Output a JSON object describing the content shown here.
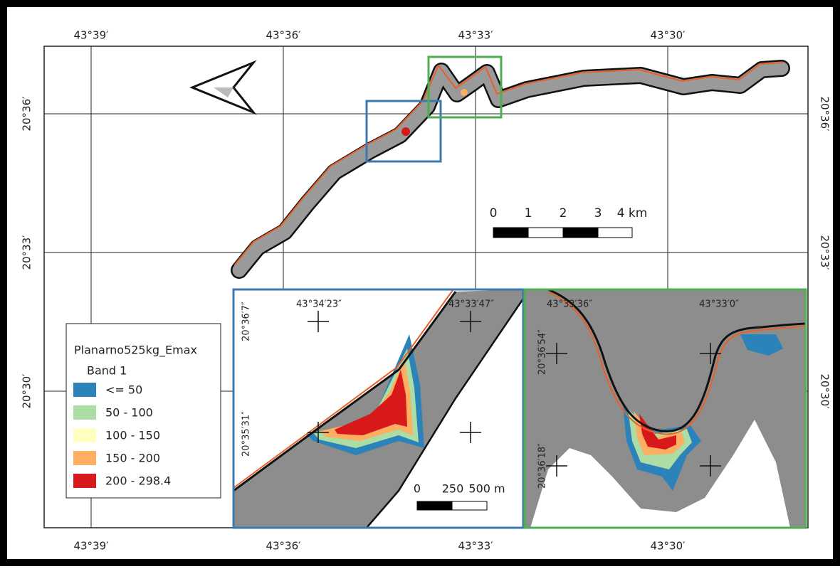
{
  "main_map": {
    "top_labels": [
      "43°39′",
      "43°36′",
      "43°33′",
      "43°30′"
    ],
    "bottom_labels": [
      "43°39′",
      "43°36′",
      "43°33′",
      "43°30′"
    ],
    "left_labels": [
      "20°36′",
      "20°33′",
      "20°30′"
    ],
    "right_labels": [
      "20°36′",
      "20°33′",
      "20°30′"
    ],
    "scale_bar": {
      "ticks": [
        "0",
        "1",
        "2",
        "3",
        "4 km"
      ]
    }
  },
  "inset_1": {
    "top_labels": [
      "43°34′23″",
      "43°33′47″"
    ],
    "left_labels": [
      "20°36′7″",
      "20°35′31″"
    ],
    "scale_bar": {
      "ticks": [
        "0",
        "250",
        "500 m"
      ]
    }
  },
  "inset_2": {
    "top_labels": [
      "43°33′36″",
      "43°33′0″"
    ],
    "left_labels": [
      "20°36′54″",
      "20°36′18″"
    ]
  },
  "legend": {
    "title": "Planarno525kg_Emax",
    "subtitle": "Band 1",
    "items": [
      {
        "label": "<= 50",
        "color": "#2b83ba"
      },
      {
        "label": "50 - 100",
        "color": "#abdda4"
      },
      {
        "label": "100 - 150",
        "color": "#ffffbf"
      },
      {
        "label": "150 - 200",
        "color": "#fdae61"
      },
      {
        "label": "200 - 298.4",
        "color": "#d7191c"
      }
    ]
  }
}
